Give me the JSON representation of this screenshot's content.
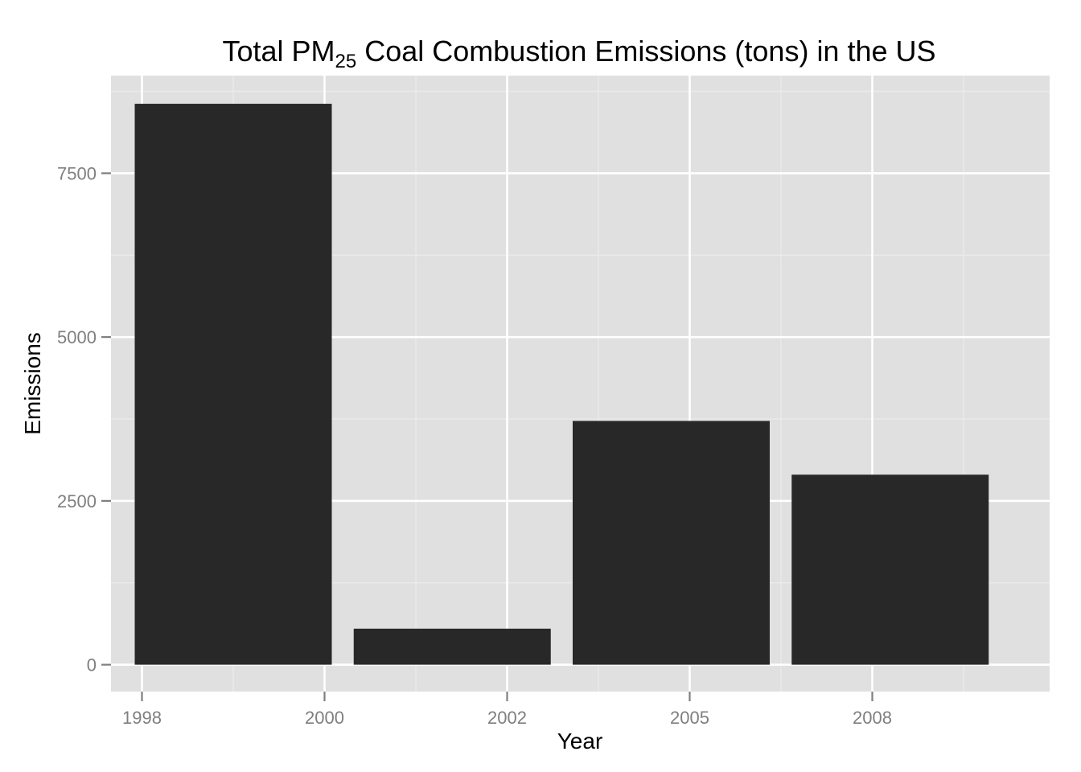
{
  "chart_data": {
    "type": "bar",
    "title": {
      "prefix": "Total PM",
      "subscript": "25",
      "suffix": " Coal Combustion Emissions (tons) in the US"
    },
    "xlabel": "Year",
    "ylabel": "Emissions",
    "x_tick_labels": [
      "1998",
      "2000",
      "2002",
      "2005",
      "2008"
    ],
    "categories": [
      "1999",
      "2002",
      "2005",
      "2008"
    ],
    "values": [
      8560,
      550,
      3720,
      2900
    ],
    "y_ticks": [
      0,
      2500,
      5000,
      7500
    ],
    "y_tick_labels": [
      "0",
      "2500",
      "5000",
      "7500"
    ],
    "ylim": [
      -410,
      8990
    ],
    "grid": true,
    "legend": "none",
    "colors": {
      "panel": "#e0e0e0",
      "grid_major": "#ffffff",
      "grid_minor": "#ebebeb",
      "bar": "#282828",
      "tick": "#7f7f7f"
    }
  }
}
